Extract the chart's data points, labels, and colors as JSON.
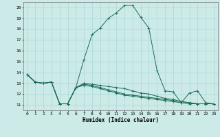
{
  "xlabel": "Humidex (Indice chaleur)",
  "xlim": [
    -0.5,
    23.5
  ],
  "ylim": [
    10.5,
    20.5
  ],
  "yticks": [
    11,
    12,
    13,
    14,
    15,
    16,
    17,
    18,
    19,
    20
  ],
  "xticks": [
    0,
    1,
    2,
    3,
    4,
    5,
    6,
    7,
    8,
    9,
    10,
    11,
    12,
    13,
    14,
    15,
    16,
    17,
    18,
    19,
    20,
    21,
    22,
    23
  ],
  "bg_color": "#cceae7",
  "grid_color": "#a8d8d4",
  "line_color": "#1a6b5a",
  "series": [
    [
      13.8,
      13.1,
      13.0,
      13.1,
      11.1,
      11.1,
      12.6,
      15.2,
      17.5,
      18.1,
      19.0,
      19.5,
      20.2,
      20.2,
      19.1,
      18.1,
      14.2,
      12.3,
      12.2,
      11.2,
      12.1,
      12.3,
      11.2,
      11.1
    ],
    [
      13.8,
      13.1,
      13.0,
      13.1,
      11.1,
      11.1,
      12.6,
      13.0,
      12.9,
      12.8,
      12.7,
      12.6,
      12.5,
      12.3,
      12.1,
      12.0,
      11.8,
      11.6,
      11.5,
      11.3,
      11.2,
      11.1,
      11.1,
      11.1
    ],
    [
      13.8,
      13.1,
      13.0,
      13.1,
      11.1,
      11.1,
      12.6,
      12.9,
      12.8,
      12.6,
      12.4,
      12.2,
      12.0,
      11.9,
      11.8,
      11.7,
      11.6,
      11.5,
      11.4,
      11.3,
      11.2,
      11.1,
      11.1,
      11.1
    ],
    [
      13.8,
      13.1,
      13.0,
      13.1,
      11.1,
      11.1,
      12.6,
      12.8,
      12.7,
      12.5,
      12.3,
      12.1,
      11.9,
      11.8,
      11.7,
      11.6,
      11.5,
      11.4,
      11.3,
      11.2,
      11.1,
      11.1,
      11.1,
      11.1
    ]
  ]
}
